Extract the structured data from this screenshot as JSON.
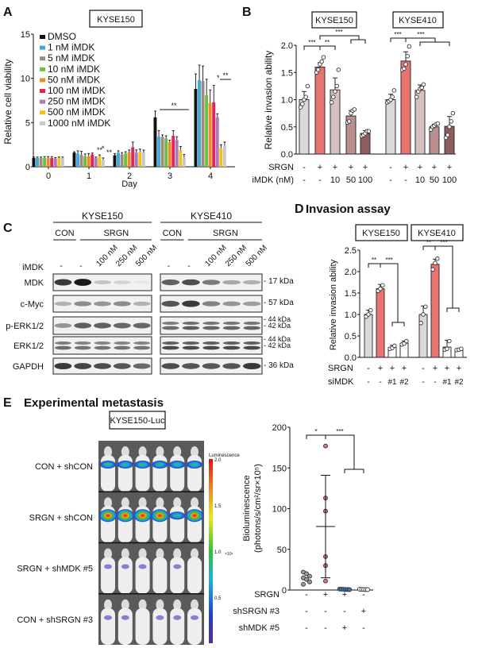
{
  "panel_labels": {
    "a": "A",
    "b": "B",
    "c": "C",
    "d": "D",
    "e": "E"
  },
  "colors": {
    "dmso": "#111111",
    "grey_bar": "#d9d9d9",
    "srgn_bar": "#e8736f",
    "imdk10": "#d6c0c0",
    "imdk50": "#b98f8f",
    "imdk100": "#8f5d5d",
    "white_bar": "#ffffff"
  },
  "chart_data": [
    {
      "id": "A",
      "type": "bar",
      "title": "KYSE150",
      "xlabel": "Day",
      "ylabel": "Relative cell viability",
      "ylim": [
        0,
        15
      ],
      "yticks": [
        "0",
        "5",
        "10",
        "15"
      ],
      "categories": [
        "0",
        "1",
        "2",
        "3",
        "4"
      ],
      "legend_placement": "top-left",
      "series": [
        {
          "name": "DMSO",
          "color": "#111111",
          "values": [
            1.0,
            1.6,
            1.3,
            5.6,
            8.8
          ],
          "errors": [
            0.1,
            0.1,
            0.2,
            0.7,
            1.7
          ]
        },
        {
          "name": "1 nM iMDK",
          "color": "#3fa9dc",
          "values": [
            1.0,
            1.5,
            1.6,
            3.4,
            9.8
          ],
          "errors": [
            0.1,
            0.3,
            0.2,
            0.7,
            1.7
          ]
        },
        {
          "name": "5 nM iMDK",
          "color": "#a08a78",
          "values": [
            1.0,
            1.35,
            1.4,
            3.4,
            9.7
          ],
          "errors": [
            0.1,
            0.4,
            0.2,
            0.2,
            1.7
          ]
        },
        {
          "name": "10 nM iMDK",
          "color": "#6cbf45",
          "values": [
            1.0,
            1.2,
            1.5,
            3.2,
            8.1
          ],
          "errors": [
            0.15,
            0.25,
            0.2,
            0.3,
            1.8
          ]
        },
        {
          "name": "50 nM iMDK",
          "color": "#f08a24",
          "values": [
            1.0,
            1.2,
            1.6,
            2.8,
            7.2
          ],
          "errors": [
            0.15,
            0.3,
            0.3,
            0.2,
            1.5
          ]
        },
        {
          "name": "100 nM iMDK",
          "color": "#e0245e",
          "values": [
            1.0,
            1.4,
            2.2,
            3.5,
            7.3
          ],
          "errors": [
            0.15,
            0.15,
            0.6,
            0.6,
            1.9
          ]
        },
        {
          "name": "250 nM iMDK",
          "color": "#a97bb8",
          "values": [
            0.95,
            1.0,
            1.6,
            3.0,
            5.6
          ],
          "errors": [
            0.1,
            0.1,
            0.3,
            0.4,
            0.4
          ]
        },
        {
          "name": "500 nM iMDK",
          "color": "#f2c21b",
          "values": [
            1.0,
            1.2,
            1.7,
            1.9,
            2.1
          ],
          "errors": [
            0.1,
            0.15,
            0.3,
            0.4,
            0.4
          ]
        },
        {
          "name": "1000 nM iMDK",
          "color": "#c8c8c8",
          "values": [
            1.0,
            0.8,
            1.6,
            1.0,
            2.4
          ],
          "errors": [
            0.1,
            0.2,
            0.3,
            0.4,
            0.4
          ]
        }
      ],
      "significance": {
        "day1": [
          "**",
          "*",
          "**"
        ],
        "day3": "**",
        "day4_a": "*",
        "day4_b": "**"
      }
    },
    {
      "id": "B",
      "type": "bar",
      "ylabel": "Relative invasion ability",
      "ylim": [
        0,
        2.0
      ],
      "yticks": [
        "0.0",
        "0.5",
        "1.0",
        "1.5",
        "2.0"
      ],
      "groups": [
        {
          "title": "KYSE150",
          "values": [
            1.0,
            1.6,
            1.18,
            0.7,
            0.38
          ],
          "errors": [
            0.15,
            0.08,
            0.22,
            0.1,
            0.05
          ],
          "points": [
            [
              0.86,
              0.92,
              1.0,
              1.05,
              1.25
            ],
            [
              1.5,
              1.55,
              1.65,
              1.7,
              1.78
            ],
            [
              0.95,
              1.05,
              1.15,
              1.25,
              1.55
            ],
            [
              0.58,
              0.6,
              0.75,
              0.8,
              0.82
            ],
            [
              0.33,
              0.35,
              0.38,
              0.42,
              0.42
            ]
          ],
          "significance": [
            "***",
            "**",
            "***"
          ]
        },
        {
          "title": "KYSE410",
          "values": [
            1.0,
            1.71,
            1.17,
            0.5,
            0.51
          ],
          "errors": [
            0.1,
            0.17,
            0.1,
            0.05,
            0.18
          ],
          "points": [
            [
              0.95,
              0.97,
              1.0,
              1.05,
              1.17
            ],
            [
              1.55,
              1.57,
              1.65,
              1.8,
              1.98
            ],
            [
              1.05,
              1.15,
              1.2,
              1.22,
              1.28
            ],
            [
              0.45,
              0.5,
              0.52,
              0.55,
              0.56
            ],
            [
              0.3,
              0.35,
              0.5,
              0.6,
              0.75
            ]
          ],
          "significance": [
            "***",
            "***"
          ]
        }
      ],
      "row_labels": [
        "SRGN",
        "iMDK (nM)"
      ],
      "srgn": [
        "-",
        "+",
        "+",
        "+",
        "+"
      ],
      "imdk": [
        "-",
        "-",
        "10",
        "50",
        "100"
      ]
    },
    {
      "id": "D",
      "type": "bar",
      "title": "Invasion assay",
      "ylabel": "Relative invasion ability",
      "ylim": [
        0,
        2.5
      ],
      "yticks": [
        "0.0",
        "0.5",
        "1.0",
        "1.5",
        "2.0",
        "2.5"
      ],
      "groups": [
        {
          "title": "KYSE150",
          "values": [
            1.0,
            1.6,
            0.23,
            0.33
          ],
          "errors": [
            0.1,
            0.1,
            0.05,
            0.05
          ],
          "points": [
            [
              0.95,
              1.0,
              1.1
            ],
            [
              1.55,
              1.6,
              1.68
            ],
            [
              0.2,
              0.22,
              0.27
            ],
            [
              0.3,
              0.32,
              0.38
            ]
          ],
          "significance": [
            "**",
            "***"
          ]
        },
        {
          "title": "KYSE410",
          "values": [
            1.0,
            2.17,
            0.24,
            0.18
          ],
          "errors": [
            0.2,
            0.12,
            0.16,
            0.03
          ],
          "points": [
            [
              0.8,
              1.0,
              1.18
            ],
            [
              2.05,
              2.2,
              2.3
            ],
            [
              0.18,
              0.2,
              0.38
            ],
            [
              0.17,
              0.18,
              0.2
            ]
          ],
          "significance": [
            "**",
            "***"
          ]
        }
      ],
      "row_labels": [
        "SRGN",
        "siMDK"
      ],
      "srgn": [
        "-",
        "+",
        "+",
        "+"
      ],
      "simdk": [
        "-",
        "-",
        "#1",
        "#2"
      ]
    },
    {
      "id": "E",
      "type": "scatter",
      "ylabel": "Bioluminescence",
      "ylabel2": "(photons/s/cm²/sr×10⁵)",
      "ylim": [
        0,
        200
      ],
      "yticks": [
        "0",
        "50",
        "100",
        "150",
        "200"
      ],
      "groups": [
        {
          "points": [
            22,
            20,
            17,
            15,
            13,
            10,
            7
          ],
          "color": "#9a9a9a"
        },
        {
          "points": [
            177,
            113,
            97,
            41,
            30,
            11
          ],
          "color": "#e37070",
          "mean": 78,
          "sd_upper": 141,
          "sd_lower": 15
        },
        {
          "points": [
            1.2,
            1.0,
            0.9,
            0.7,
            0.6,
            0.5
          ],
          "color": "#3f78a8"
        },
        {
          "points": [
            1.0,
            0.8,
            0.7,
            0.6,
            0.5
          ],
          "color": "#ffffff"
        }
      ],
      "significance": [
        "*",
        "***"
      ],
      "row_labels": [
        "SRGN",
        "shSRGN #3",
        "shMDK #5"
      ],
      "srgn": [
        "-",
        "+",
        "+",
        "-"
      ],
      "shsrgn": [
        "-",
        "-",
        "-",
        "+"
      ],
      "shmdk": [
        "-",
        "-",
        "+",
        "-"
      ]
    }
  ],
  "panelC": {
    "cell_lines": [
      "KYSE150",
      "KYSE410"
    ],
    "con": "CON",
    "srgn": "SRGN",
    "imdk_label": "iMDK",
    "lanes": [
      "-",
      "-",
      "100 nM",
      "250 nM",
      "500 nM"
    ],
    "proteins": [
      "MDK",
      "c-Myc",
      "p-ERK1/2",
      "ERK1/2",
      "GAPDH"
    ],
    "kda": [
      "- 17 kDa",
      "- 57 kDa",
      "- 44 kDa",
      "- 42 kDa",
      "- 44 kDa",
      "- 42 kDa",
      "- 36 kDa"
    ]
  },
  "panelE": {
    "title": "Experimental metastasis",
    "image_title": "KYSE150-Luc",
    "rows": [
      "CON + shCON",
      "SRGN + shCON",
      "SRGN + shMDK #5",
      "CON + shSRGN #3"
    ],
    "colorbar_title": "Luminescence",
    "colorbar_ticks": [
      "2.0",
      "1.5",
      "1.0",
      "0.5"
    ],
    "colorbar_unit": "×10⁶"
  }
}
